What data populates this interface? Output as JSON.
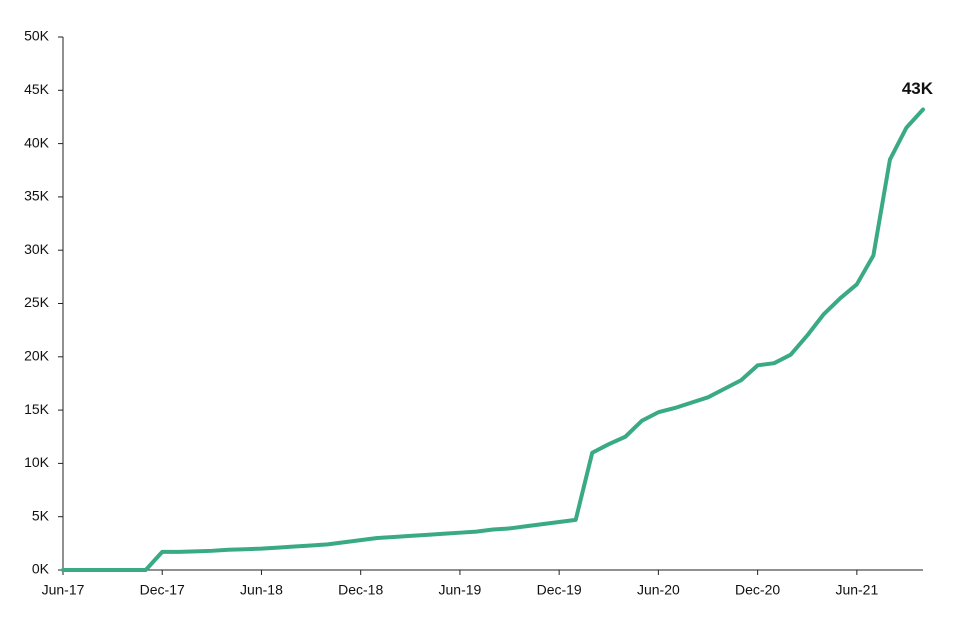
{
  "chart_data": {
    "type": "line",
    "x": [
      "2017-06",
      "2017-07",
      "2017-08",
      "2017-09",
      "2017-10",
      "2017-11",
      "2017-12",
      "2018-01",
      "2018-02",
      "2018-03",
      "2018-04",
      "2018-05",
      "2018-06",
      "2018-07",
      "2018-08",
      "2018-09",
      "2018-10",
      "2018-11",
      "2018-12",
      "2019-01",
      "2019-02",
      "2019-03",
      "2019-04",
      "2019-05",
      "2019-06",
      "2019-07",
      "2019-08",
      "2019-09",
      "2019-10",
      "2019-11",
      "2019-12",
      "2020-01",
      "2020-02",
      "2020-03",
      "2020-04",
      "2020-05",
      "2020-06",
      "2020-07",
      "2020-08",
      "2020-09",
      "2020-10",
      "2020-11",
      "2020-12",
      "2021-01",
      "2021-02",
      "2021-03",
      "2021-04",
      "2021-05",
      "2021-06",
      "2021-07",
      "2021-08",
      "2021-09",
      "2021-10"
    ],
    "series": [
      {
        "color": "#3aaa85",
        "values": [
          0,
          0,
          0,
          0,
          0,
          0,
          1700,
          1700,
          1750,
          1800,
          1900,
          1950,
          2000,
          2100,
          2200,
          2300,
          2400,
          2600,
          2800,
          3000,
          3100,
          3200,
          3300,
          3400,
          3500,
          3600,
          3800,
          3900,
          4100,
          4300,
          4500,
          4700,
          11000,
          11800,
          12500,
          14000,
          14800,
          15200,
          15700,
          16200,
          17000,
          17800,
          19200,
          19400,
          20200,
          22000,
          24000,
          25500,
          26800,
          29500,
          38500,
          41500,
          43200
        ],
        "value_labels": {
          "52": "43K"
        }
      }
    ],
    "xlim": [
      "2017-06",
      "2021-10"
    ],
    "xticks": [
      {
        "value": "2017-06",
        "label": "Jun-17"
      },
      {
        "value": "2017-12",
        "label": "Dec-17"
      },
      {
        "value": "2018-06",
        "label": "Jun-18"
      },
      {
        "value": "2018-12",
        "label": "Dec-18"
      },
      {
        "value": "2019-06",
        "label": "Jun-19"
      },
      {
        "value": "2019-12",
        "label": "Dec-19"
      },
      {
        "value": "2020-06",
        "label": "Jun-20"
      },
      {
        "value": "2020-12",
        "label": "Dec-20"
      },
      {
        "value": "2021-06",
        "label": "Jun-21"
      }
    ],
    "ylim": [
      0,
      50000
    ],
    "yticks": [
      {
        "value": 0,
        "label": "0K"
      },
      {
        "value": 5000,
        "label": "5K"
      },
      {
        "value": 10000,
        "label": "10K"
      },
      {
        "value": 15000,
        "label": "15K"
      },
      {
        "value": 20000,
        "label": "20K"
      },
      {
        "value": 25000,
        "label": "25K"
      },
      {
        "value": 30000,
        "label": "30K"
      },
      {
        "value": 35000,
        "label": "35K"
      },
      {
        "value": 40000,
        "label": "40K"
      },
      {
        "value": 45000,
        "label": "45K"
      },
      {
        "value": 50000,
        "label": "50K"
      }
    ]
  }
}
